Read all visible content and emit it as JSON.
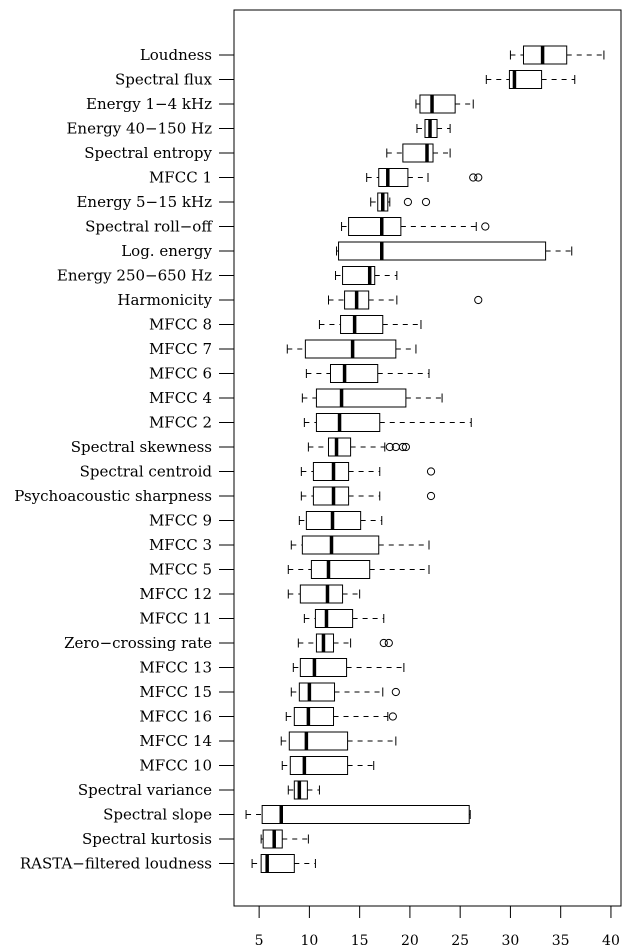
{
  "chart_data": {
    "type": "boxplot",
    "title": "",
    "xlabel": "",
    "ylabel": "",
    "xlim": [
      2.5,
      41
    ],
    "xticks": [
      5,
      10,
      15,
      20,
      25,
      30,
      35,
      40
    ],
    "xtick_labels": [
      "5",
      "10",
      "15",
      "20",
      "25",
      "30",
      "35",
      "40"
    ],
    "grid": false,
    "categories": [
      "Loudness",
      "Spectral flux",
      "Energy 1−4 kHz",
      "Energy 40−150 Hz",
      "Spectral entropy",
      "MFCC 1",
      "Energy 5−15 kHz",
      "Spectral roll−off",
      "Log. energy",
      "Energy 250−650 Hz",
      "Harmonicity",
      "MFCC 8",
      "MFCC 7",
      "MFCC 6",
      "MFCC 4",
      "MFCC 2",
      "Spectral skewness",
      "Spectral centroid",
      "Psychoacoustic sharpness",
      "MFCC 9",
      "MFCC 3",
      "MFCC 5",
      "MFCC 12",
      "MFCC 11",
      "Zero−crossing rate",
      "MFCC 13",
      "MFCC 15",
      "MFCC 16",
      "MFCC 14",
      "MFCC 10",
      "Spectral variance",
      "Spectral slope",
      "Spectral kurtosis",
      "RASTA−filtered loudness"
    ],
    "boxes": [
      {
        "min": 30.0,
        "q1": 31.3,
        "median": 33.2,
        "q3": 35.6,
        "max": 39.3,
        "outliers": []
      },
      {
        "min": 27.6,
        "q1": 29.9,
        "median": 30.4,
        "q3": 33.1,
        "max": 36.4,
        "outliers": []
      },
      {
        "min": 20.6,
        "q1": 21.0,
        "median": 22.2,
        "q3": 24.5,
        "max": 26.3,
        "outliers": []
      },
      {
        "min": 20.7,
        "q1": 21.5,
        "median": 22.0,
        "q3": 22.7,
        "max": 24.0,
        "outliers": []
      },
      {
        "min": 17.7,
        "q1": 19.3,
        "median": 21.7,
        "q3": 22.3,
        "max": 24.0,
        "outliers": []
      },
      {
        "min": 15.7,
        "q1": 16.9,
        "median": 17.8,
        "q3": 19.8,
        "max": 21.8,
        "outliers": [
          26.3,
          26.8
        ]
      },
      {
        "min": 16.1,
        "q1": 16.8,
        "median": 17.3,
        "q3": 17.8,
        "max": 18.0,
        "outliers": [
          19.8,
          21.6
        ]
      },
      {
        "min": 13.2,
        "q1": 13.9,
        "median": 17.2,
        "q3": 19.1,
        "max": 26.6,
        "outliers": [
          27.5
        ]
      },
      {
        "min": 12.7,
        "q1": 12.9,
        "median": 17.2,
        "q3": 33.5,
        "max": 36.1,
        "outliers": []
      },
      {
        "min": 12.6,
        "q1": 13.3,
        "median": 16.0,
        "q3": 16.5,
        "max": 18.7,
        "outliers": []
      },
      {
        "min": 11.9,
        "q1": 13.5,
        "median": 14.7,
        "q3": 15.9,
        "max": 18.7,
        "outliers": [
          26.8
        ]
      },
      {
        "min": 11.0,
        "q1": 13.1,
        "median": 14.5,
        "q3": 17.3,
        "max": 21.1,
        "outliers": []
      },
      {
        "min": 7.8,
        "q1": 9.6,
        "median": 14.3,
        "q3": 18.6,
        "max": 20.6,
        "outliers": []
      },
      {
        "min": 9.7,
        "q1": 12.1,
        "median": 13.5,
        "q3": 16.8,
        "max": 21.9,
        "outliers": []
      },
      {
        "min": 9.3,
        "q1": 10.7,
        "median": 13.2,
        "q3": 19.6,
        "max": 23.2,
        "outliers": []
      },
      {
        "min": 9.5,
        "q1": 10.7,
        "median": 13.0,
        "q3": 17.0,
        "max": 26.1,
        "outliers": []
      },
      {
        "min": 9.9,
        "q1": 11.9,
        "median": 12.7,
        "q3": 14.1,
        "max": 17.5,
        "outliers": [
          18.0,
          18.6,
          19.3,
          19.6
        ]
      },
      {
        "min": 9.2,
        "q1": 10.4,
        "median": 12.4,
        "q3": 13.9,
        "max": 17.0,
        "outliers": [
          22.1
        ]
      },
      {
        "min": 9.2,
        "q1": 10.4,
        "median": 12.4,
        "q3": 13.9,
        "max": 17.0,
        "outliers": [
          22.1
        ]
      },
      {
        "min": 9.0,
        "q1": 9.7,
        "median": 12.3,
        "q3": 15.1,
        "max": 17.2,
        "outliers": []
      },
      {
        "min": 8.2,
        "q1": 9.3,
        "median": 12.2,
        "q3": 16.9,
        "max": 21.9,
        "outliers": []
      },
      {
        "min": 7.9,
        "q1": 10.2,
        "median": 11.9,
        "q3": 16.0,
        "max": 21.9,
        "outliers": []
      },
      {
        "min": 7.9,
        "q1": 9.1,
        "median": 11.8,
        "q3": 13.3,
        "max": 15.0,
        "outliers": []
      },
      {
        "min": 9.5,
        "q1": 10.6,
        "median": 11.7,
        "q3": 14.3,
        "max": 17.4,
        "outliers": []
      },
      {
        "min": 8.9,
        "q1": 10.7,
        "median": 11.4,
        "q3": 12.4,
        "max": 14.1,
        "outliers": [
          17.4,
          17.9
        ]
      },
      {
        "min": 8.4,
        "q1": 9.1,
        "median": 10.5,
        "q3": 13.7,
        "max": 19.4,
        "outliers": []
      },
      {
        "min": 8.2,
        "q1": 9.0,
        "median": 10.0,
        "q3": 12.5,
        "max": 17.3,
        "outliers": [
          18.6
        ]
      },
      {
        "min": 7.7,
        "q1": 8.5,
        "median": 9.9,
        "q3": 12.4,
        "max": 17.8,
        "outliers": [
          18.3
        ]
      },
      {
        "min": 7.2,
        "q1": 8.0,
        "median": 9.7,
        "q3": 13.8,
        "max": 18.6,
        "outliers": []
      },
      {
        "min": 7.3,
        "q1": 8.1,
        "median": 9.5,
        "q3": 13.8,
        "max": 16.4,
        "outliers": []
      },
      {
        "min": 7.9,
        "q1": 8.5,
        "median": 9.0,
        "q3": 9.8,
        "max": 11.0,
        "outliers": []
      },
      {
        "min": 3.7,
        "q1": 5.3,
        "median": 7.2,
        "q3": 25.9,
        "max": 26.0,
        "outliers": []
      },
      {
        "min": 5.2,
        "q1": 5.4,
        "median": 6.5,
        "q3": 7.3,
        "max": 9.9,
        "outliers": []
      },
      {
        "min": 4.3,
        "q1": 5.2,
        "median": 5.8,
        "q3": 8.5,
        "max": 10.6,
        "outliers": []
      }
    ]
  }
}
